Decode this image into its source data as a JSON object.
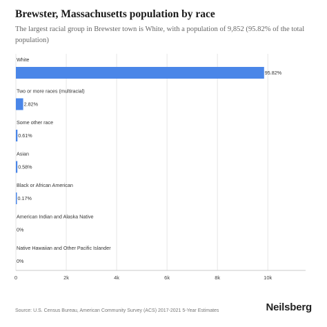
{
  "title": "Brewster, Massachusetts population by race",
  "subtitle": "The largest racial group in Brewster town is White, with a population of 9,852 (95.82% of the total population)",
  "source": "Source: U.S. Census Bureau, American Community Survey (ACS) 2017-2021 5-Year Estimates",
  "brand": "Neilsberg",
  "colors": {
    "bar": "#4a86e8",
    "grid": "#e6e6e6",
    "axis": "#c8c8c8"
  },
  "chart_data": {
    "type": "bar",
    "orientation": "horizontal",
    "categories": [
      "White",
      "Two or more races (multiracial)",
      "Some other race",
      "Asian",
      "Black or African American",
      "American Indian and Alaska Native",
      "Native Hawaiian and Other Pacific Islander"
    ],
    "values": [
      9852,
      290,
      63,
      60,
      17,
      0,
      0
    ],
    "data_labels": [
      "95.82%",
      "2.82%",
      "0.61%",
      "0.58%",
      "0.17%",
      "0%",
      "0%"
    ],
    "xlim": [
      0,
      11500
    ],
    "xticks": [
      0,
      2000,
      4000,
      6000,
      8000,
      10000
    ],
    "xtick_labels": [
      "0",
      "2k",
      "4k",
      "6k",
      "8k",
      "10k"
    ],
    "grid": true
  }
}
